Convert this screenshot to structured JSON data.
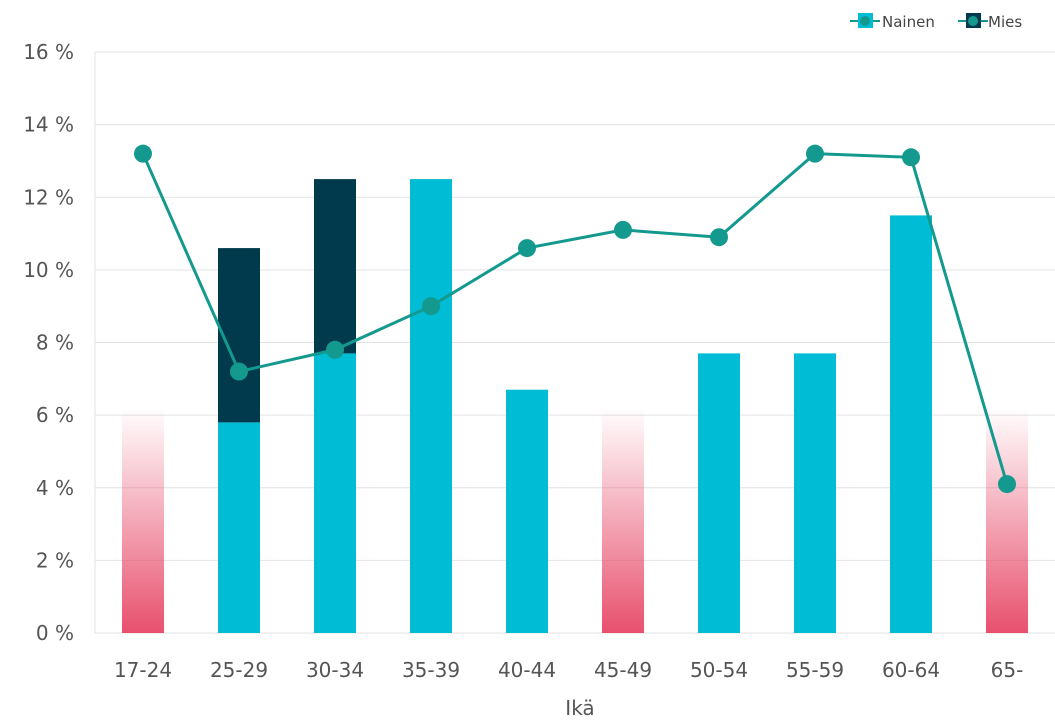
{
  "chart_data": {
    "type": "bar",
    "xlabel": "Ikä",
    "ylabel": "",
    "ylim": [
      0,
      16
    ],
    "y_ticks": [
      0,
      2,
      4,
      6,
      8,
      10,
      12,
      14,
      16
    ],
    "y_tick_format": "{v} %",
    "grid": true,
    "legend_position": "top-right",
    "categories": [
      "17-24",
      "25-29",
      "30-34",
      "35-39",
      "40-44",
      "45-49",
      "50-54",
      "55-59",
      "60-64",
      "65-"
    ],
    "stacked_series": [
      {
        "name": "Nainen",
        "color": "#00bcd4",
        "values": [
          0,
          5.8,
          7.7,
          12.5,
          6.7,
          0,
          7.7,
          7.7,
          11.5,
          0
        ]
      },
      {
        "name": "Mies",
        "color": "#003a4c",
        "values": [
          0,
          4.8,
          4.8,
          0,
          0,
          0,
          0,
          0,
          0,
          0
        ]
      }
    ],
    "placeholder_bars": {
      "color": "#e8506e",
      "value": 6.2,
      "categories": [
        "17-24",
        "45-49",
        "65-"
      ]
    },
    "line_series": {
      "color": "#14998f",
      "values": [
        13.2,
        7.2,
        7.8,
        9.0,
        10.6,
        11.1,
        10.9,
        13.2,
        13.1,
        4.1
      ]
    },
    "legend": [
      {
        "label": "Nainen",
        "color": "#00bcd4",
        "line_color": "#14998f"
      },
      {
        "label": "Mies",
        "color": "#003a4c",
        "line_color": "#14998f"
      }
    ]
  }
}
